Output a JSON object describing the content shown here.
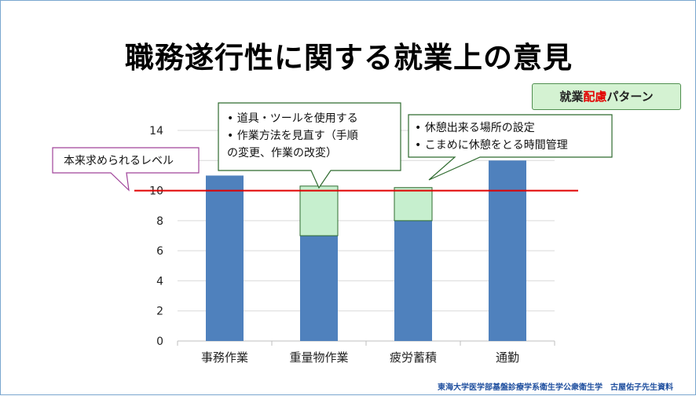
{
  "slide": {
    "title": "職務遂行性に関する就業上の意見",
    "pattern_label_pre": "就業",
    "pattern_label_highlight": "配慮",
    "pattern_label_post": "パターン",
    "footer": "東海大学医学部基盤診療学系衛生学公衆衛生学　古屋佑子先生資料"
  },
  "chart_data": {
    "type": "bar",
    "categories": [
      "事務作業",
      "重量物作業",
      "疲労蓄積",
      "通勤"
    ],
    "series": [
      {
        "values": [
          11,
          7,
          8,
          12
        ],
        "color": "#4f81bd"
      },
      {
        "values": [
          0,
          3.3,
          2.2,
          0
        ],
        "color": "#c6efce"
      }
    ],
    "ylim": [
      0,
      14
    ],
    "yticks": [
      0,
      2,
      4,
      6,
      8,
      10,
      12,
      14
    ],
    "grid": true,
    "reference_line": {
      "value": 10,
      "label": "本来求められるレベル",
      "color": "#e00000"
    },
    "annotations": [
      {
        "lines": [
          "•  道具・ツールを使用する",
          "•  作業方法を見直す（手順",
          "    の変更、作業の改変）"
        ]
      },
      {
        "lines": [
          "•  休憩出来る場所の設定",
          "•  こまめに休憩をとる時間管理"
        ]
      }
    ]
  }
}
